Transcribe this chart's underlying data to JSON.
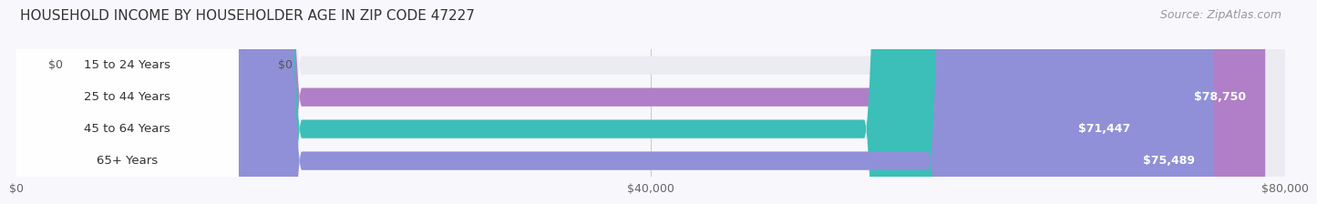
{
  "title": "HOUSEHOLD INCOME BY HOUSEHOLDER AGE IN ZIP CODE 47227",
  "source": "Source: ZipAtlas.com",
  "categories": [
    "15 to 24 Years",
    "25 to 44 Years",
    "45 to 64 Years",
    "65+ Years"
  ],
  "values": [
    0,
    78750,
    71447,
    75489
  ],
  "max_value": 80000,
  "bar_colors": [
    "#a8c8e8",
    "#b07fc7",
    "#3bbfb8",
    "#9090d8"
  ],
  "bar_bg_color": "#ebebf2",
  "value_labels": [
    "$0",
    "$78,750",
    "$71,447",
    "$75,489"
  ],
  "xtick_labels": [
    "$0",
    "$40,000",
    "$80,000"
  ],
  "xtick_values": [
    0,
    40000,
    80000
  ],
  "background_color": "#f8f8fc",
  "title_fontsize": 11,
  "source_fontsize": 9,
  "label_fontsize": 9.5,
  "value_fontsize": 9,
  "tick_fontsize": 9
}
